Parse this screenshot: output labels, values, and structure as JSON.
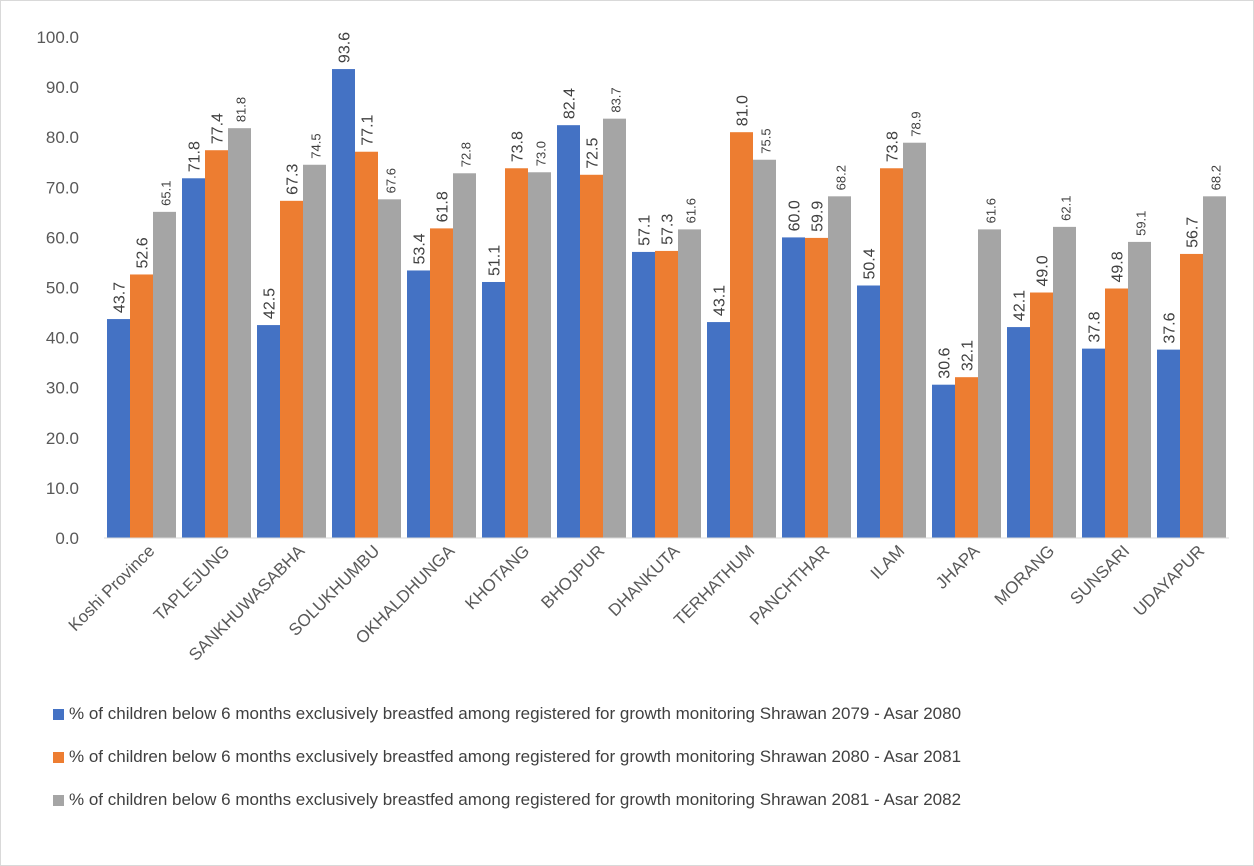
{
  "chart_data": {
    "type": "bar",
    "title": "",
    "xlabel": "",
    "ylabel": "",
    "ylim": [
      0,
      100
    ],
    "yticks": [
      "0.0",
      "10.0",
      "20.0",
      "30.0",
      "40.0",
      "50.0",
      "60.0",
      "70.0",
      "80.0",
      "90.0",
      "100.0"
    ],
    "grid": false,
    "legend_position": "bottom",
    "categories": [
      "Koshi Province",
      "TAPLEJUNG",
      "SANKHUWASABHA",
      "SOLUKHUMBU",
      "OKHALDHUNGA",
      "KHOTANG",
      "BHOJPUR",
      "DHANKUTA",
      "TERHATHUM",
      "PANCHTHAR",
      "ILAM",
      "JHAPA",
      "MORANG",
      "SUNSARI",
      "UDAYAPUR"
    ],
    "series": [
      {
        "name": "% of children below 6 months exclusively breastfed among registered for growth monitoring Shrawan 2079 - Asar 2080",
        "color": "#4472c4",
        "values": [
          43.7,
          71.8,
          42.5,
          93.6,
          53.4,
          51.1,
          82.4,
          57.1,
          43.1,
          60.0,
          50.4,
          30.6,
          42.1,
          37.8,
          37.6
        ]
      },
      {
        "name": "% of children below 6 months exclusively breastfed among registered for growth monitoring Shrawan 2080 - Asar 2081",
        "color": "#ed7d31",
        "values": [
          52.6,
          77.4,
          67.3,
          77.1,
          61.8,
          73.8,
          72.5,
          57.3,
          81.0,
          59.9,
          73.8,
          32.1,
          49.0,
          49.8,
          56.7
        ]
      },
      {
        "name": "% of children below 6 months exclusively breastfed among registered for growth monitoring Shrawan 2081 - Asar 2082",
        "color": "#a5a5a5",
        "values": [
          65.1,
          81.8,
          74.5,
          67.6,
          72.8,
          73.0,
          83.7,
          61.6,
          75.5,
          68.2,
          78.9,
          61.6,
          62.1,
          59.1,
          68.2
        ]
      }
    ]
  }
}
